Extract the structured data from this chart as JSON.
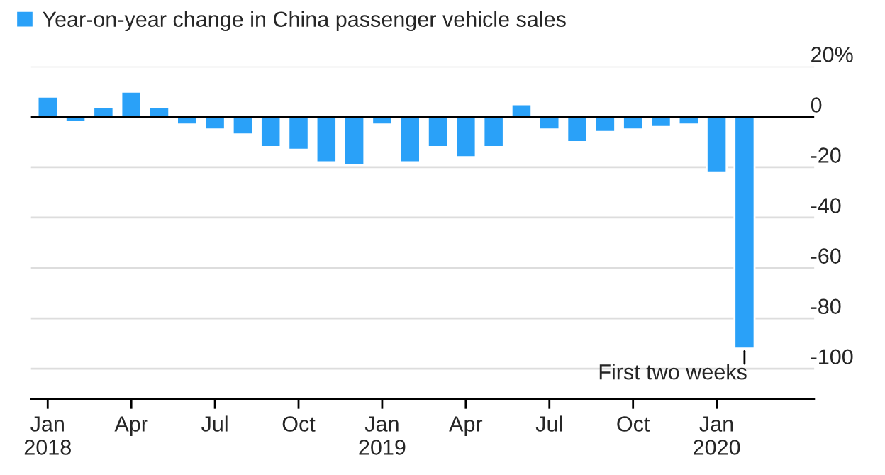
{
  "chart_data": {
    "type": "bar",
    "categories": [
      "Jan\n2018",
      null,
      null,
      "Apr",
      null,
      null,
      "Jul",
      null,
      null,
      "Oct",
      null,
      null,
      "Jan\n2019",
      null,
      null,
      "Apr",
      null,
      null,
      "Jul",
      null,
      null,
      "Oct",
      null,
      null,
      "Jan\n2020",
      null
    ],
    "series": [
      {
        "name": "Year-on-year change in China passenger vehicle sales",
        "color": "#2aa1f8",
        "values": [
          8,
          -2,
          4,
          10,
          4,
          -3,
          -5,
          -7,
          -12,
          -13,
          -18,
          -19,
          -3,
          -18,
          -12,
          -16,
          -12,
          5,
          -5,
          -10,
          -6,
          -5,
          -4,
          -3,
          -22,
          -92
        ]
      }
    ],
    "ylim": [
      -112,
      20
    ],
    "yticks": [
      {
        "value": 20,
        "label": "20%"
      },
      0,
      -20,
      -40,
      -60,
      -80,
      -100
    ],
    "grid": "y",
    "legend": "top left",
    "ref_lines": [
      {
        "axis": "y",
        "value": 0,
        "color": "#000000"
      }
    ],
    "annotations": [
      "First two weeks"
    ]
  }
}
